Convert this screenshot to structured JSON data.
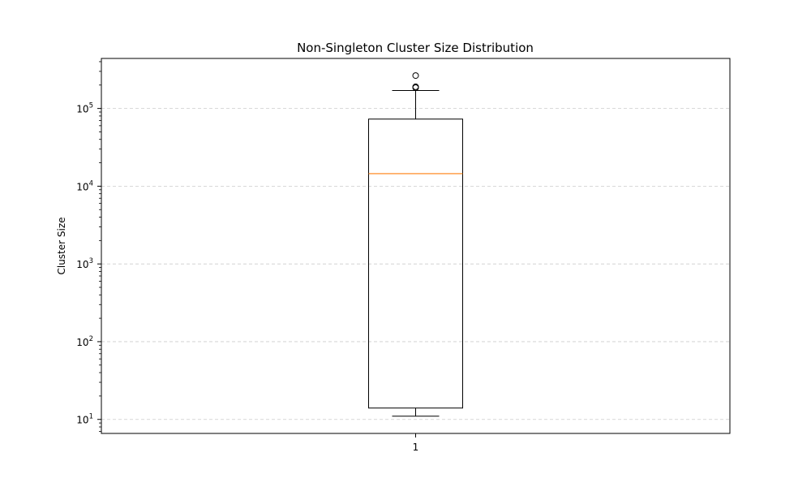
{
  "chart_data": {
    "type": "boxplot",
    "title": "Non-Singleton Cluster Size Distribution",
    "xlabel": "",
    "ylabel": "Cluster Size",
    "y_scale": "log",
    "ylim": [
      6.6,
      440000
    ],
    "x_categories": [
      "1"
    ],
    "y_ticks": [
      {
        "value": 10,
        "base": "10",
        "exp": "1"
      },
      {
        "value": 100,
        "base": "10",
        "exp": "2"
      },
      {
        "value": 1000,
        "base": "10",
        "exp": "3"
      },
      {
        "value": 10000,
        "base": "10",
        "exp": "4"
      },
      {
        "value": 100000,
        "base": "10",
        "exp": "5"
      }
    ],
    "grid": "horizontal-dashed",
    "box": {
      "category": "1",
      "whisker_low": 11,
      "q1": 14,
      "median": 14500,
      "q3": 73000,
      "whisker_high": 170000,
      "outliers": [
        185000,
        190000,
        265000
      ]
    },
    "colors": {
      "box": "#000000",
      "median": "#ff7f0e",
      "grid": "#cccccc"
    }
  }
}
